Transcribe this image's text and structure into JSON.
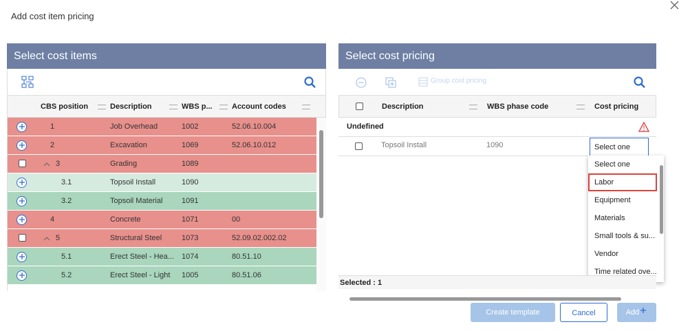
{
  "dialog": {
    "title": "Add cost item pricing"
  },
  "left": {
    "title": "Select cost items",
    "columns": [
      "CBS position",
      "Description",
      "WBS p...",
      "Account codes"
    ],
    "rows": [
      {
        "cbs": "1",
        "description": "Job Overhead",
        "wbs": "1002",
        "account": "52.06.10.004",
        "color": "#e8908c"
      },
      {
        "cbs": "2",
        "description": "Excavation",
        "wbs": "1069",
        "account": "52.06.10.012",
        "color": "#e8908c"
      },
      {
        "cbs": "3",
        "description": "Grading",
        "wbs": "1089",
        "color": "#e8908c"
      },
      {
        "cbs": "3.1",
        "description": "Topsoil Install",
        "wbs": "1090",
        "color": "#d6ebe0"
      },
      {
        "cbs": "3.2",
        "description": "Topsoil Material",
        "wbs": "1091",
        "color": "#a9d6bd"
      },
      {
        "cbs": "4",
        "description": "Concrete",
        "wbs": "1071",
        "account": "00",
        "color": "#e8908c"
      },
      {
        "cbs": "5",
        "description": "Structural Steel",
        "wbs": "1073",
        "account": "52.09.02.002.02",
        "color": "#e8908c"
      },
      {
        "cbs": "5.1",
        "description": "Erect Steel  - Hea...",
        "wbs": "1074",
        "account": "80.51.10",
        "color": "#a9d6bd"
      },
      {
        "cbs": "5.2",
        "description": "Erect Steel - Light",
        "wbs": "1005",
        "account": "80.51.06",
        "color": "#a9d6bd"
      }
    ]
  },
  "right": {
    "title": "Select cost pricing",
    "toolbar": "Group cost pricing",
    "columns": [
      "Description",
      "WBS phase code",
      "Cost pricing"
    ],
    "group": "Undefined",
    "rows": [
      {
        "description": "Topsoil Install",
        "wbs": "1090",
        "pricing": "Select one"
      }
    ],
    "options": [
      "Select one",
      "Labor",
      "Equipment",
      "Materials",
      "Small tools & su...",
      "Vendor",
      "Time related ove..."
    ],
    "footer": "Selected : 1"
  },
  "buttons": [
    "Create template",
    "Cancel",
    "Add"
  ]
}
